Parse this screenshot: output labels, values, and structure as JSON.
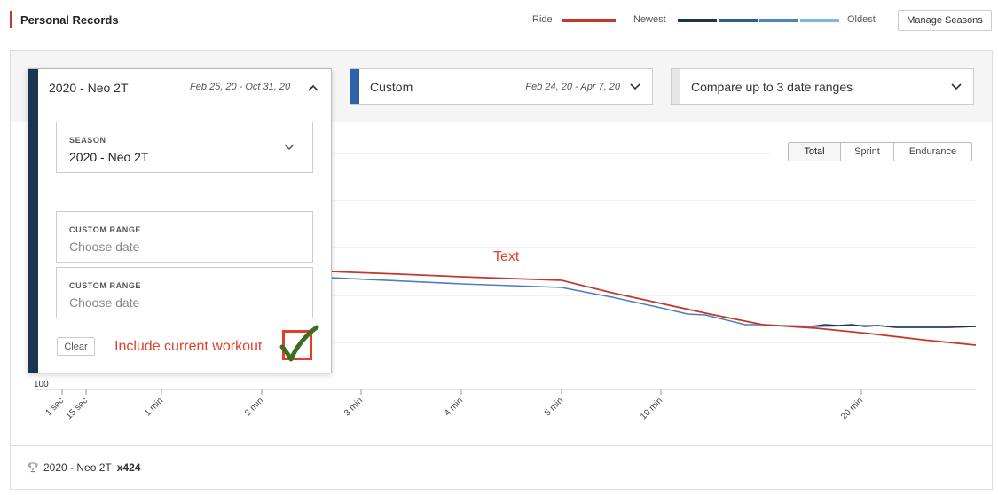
{
  "header": {
    "title": "Personal Records",
    "legend": {
      "ride_label": "Ride",
      "ride_color": "#c2392b",
      "newest_label": "Newest",
      "oldest_label": "Oldest",
      "gradient_colors": [
        "#1b3550",
        "#2e5f8e",
        "#4c86c0",
        "#7ab7e3"
      ]
    },
    "manage_seasons_label": "Manage Seasons"
  },
  "selectors": {
    "primary": {
      "label": "2020 - Neo 2T",
      "dates": "Feb 25, 20 - Oct 31, 20",
      "color": "#1b3550"
    },
    "custom": {
      "label": "Custom",
      "dates": "Feb 24, 20 - Apr 7, 20",
      "color": "#2e62a8"
    },
    "compare": {
      "label": "Compare up to 3 date ranges"
    }
  },
  "dropdown": {
    "season_field": {
      "label": "SEASON",
      "value": "2020 - Neo 2T"
    },
    "range1": {
      "label": "CUSTOM RANGE",
      "placeholder": "Choose date"
    },
    "range2": {
      "label": "CUSTOM RANGE",
      "placeholder": "Choose date"
    },
    "clear_label": "Clear",
    "include_current_label": "Include current workout",
    "include_current_checked": true
  },
  "annotation_text": "Text",
  "segments": [
    "Total",
    "Sprint",
    "Endurance"
  ],
  "selected_segment": "Total",
  "chart_data": {
    "type": "line",
    "x_ticks": [
      "1 sec",
      "15 sec",
      "1 min",
      "2 min",
      "3 min",
      "4 min",
      "5 min",
      "10 min",
      "20 min"
    ],
    "y_visible_label": "100",
    "series": [
      {
        "color": "#c2392b",
        "note_role": "ride"
      },
      {
        "color": "#4a7fbf",
        "note_role": "range"
      }
    ]
  },
  "footer": {
    "season": "2020 - Neo 2T",
    "count": "x424"
  }
}
